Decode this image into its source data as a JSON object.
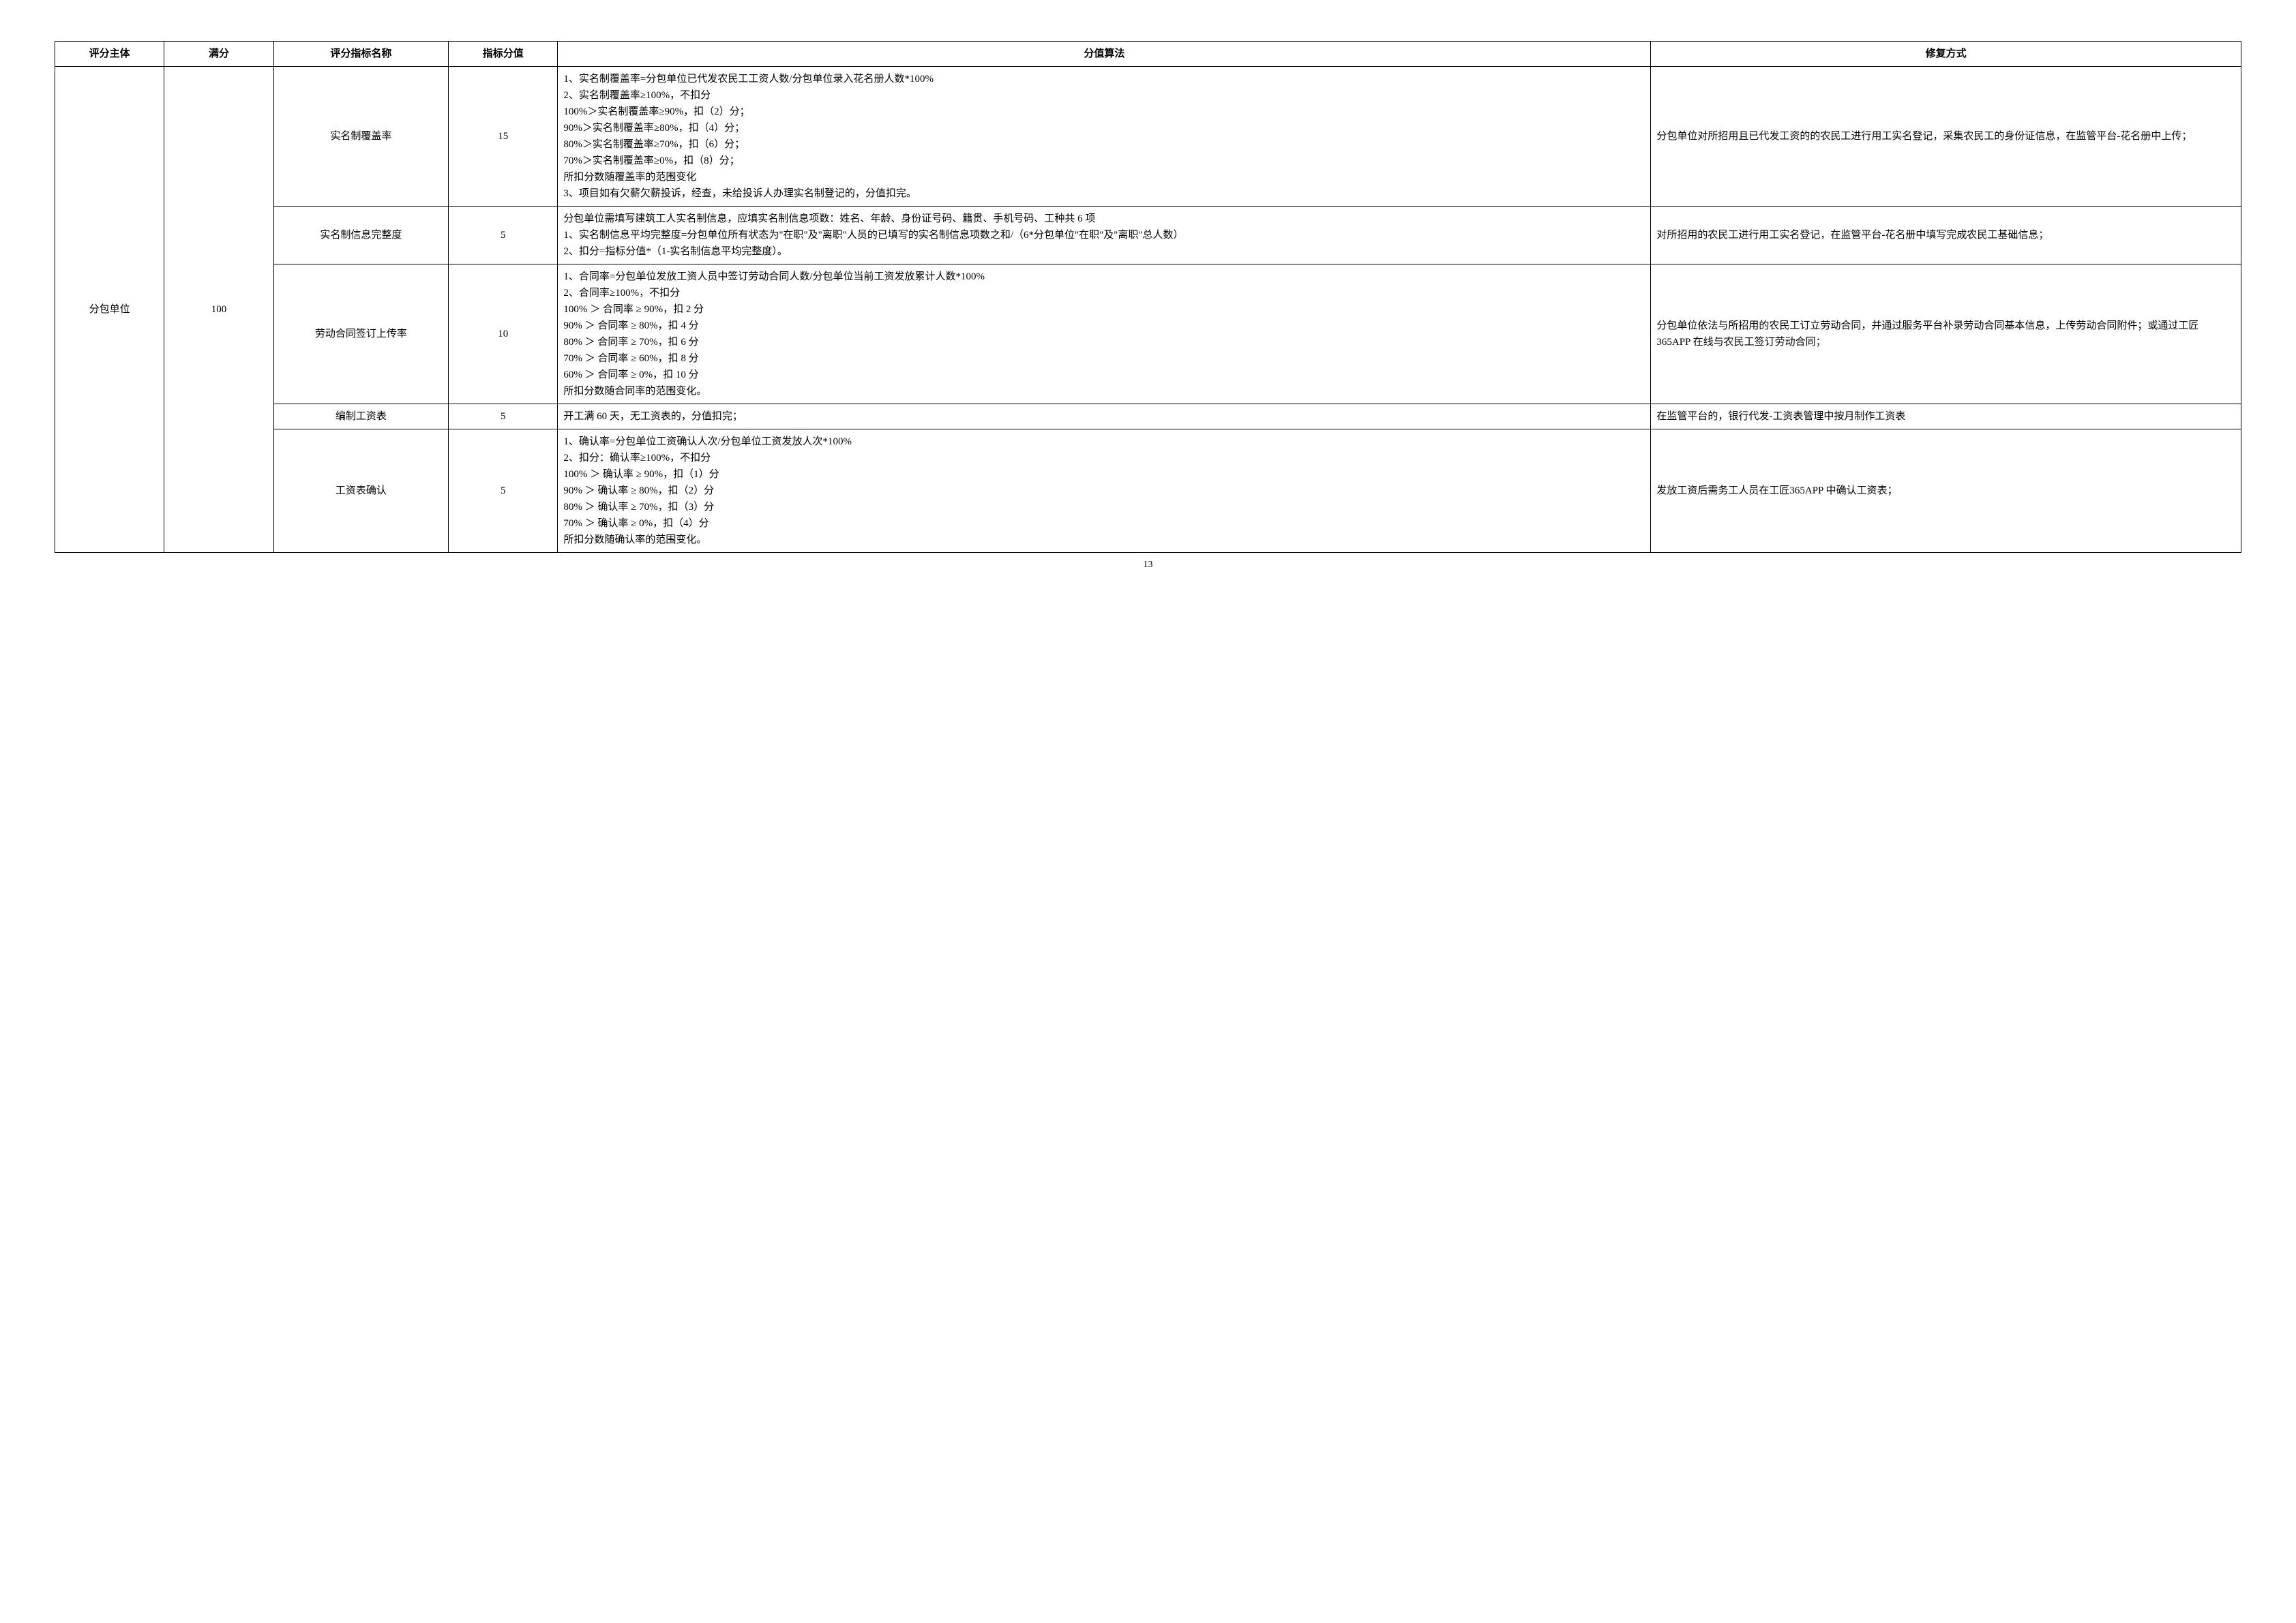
{
  "headers": {
    "subject": "评分主体",
    "fullScore": "满分",
    "indicatorName": "评分指标名称",
    "indicatorScore": "指标分值",
    "algorithm": "分值算法",
    "remedy": "修复方式"
  },
  "subject": {
    "name": "分包单位",
    "fullScore": "100"
  },
  "rows": [
    {
      "name": "实名制覆盖率",
      "score": "15",
      "algorithm": "1、实名制覆盖率=分包单位已代发农民工工资人数/分包单位录入花名册人数*100%\n2、实名制覆盖率≥100%，不扣分\n100%＞实名制覆盖率≥90%，扣（2）分；\n90%＞实名制覆盖率≥80%，扣（4）分；\n80%＞实名制覆盖率≥70%，扣（6）分；\n70%＞实名制覆盖率≥0%，扣（8）分；\n所扣分数随覆盖率的范围变化\n3、项目如有欠薪欠薪投诉，经查，未给投诉人办理实名制登记的，分值扣完。",
      "remedy": "分包单位对所招用且已代发工资的的农民工进行用工实名登记，采集农民工的身份证信息，在监管平台-花名册中上传；"
    },
    {
      "name": "实名制信息完整度",
      "score": "5",
      "algorithm": "分包单位需填写建筑工人实名制信息，应填实名制信息项数：姓名、年龄、身份证号码、籍贯、手机号码、工种共 6 项\n1、实名制信息平均完整度=分包单位所有状态为\"在职\"及\"离职\"人员的已填写的实名制信息项数之和/（6*分包单位\"在职\"及\"离职\"总人数）\n2、扣分=指标分值*（1-实名制信息平均完整度）。",
      "remedy": "对所招用的农民工进行用工实名登记，在监管平台-花名册中填写完成农民工基础信息；"
    },
    {
      "name": "劳动合同签订上传率",
      "score": "10",
      "algorithm": "1、合同率=分包单位发放工资人员中签订劳动合同人数/分包单位当前工资发放累计人数*100%\n2、合同率≥100%，不扣分\n100% ＞ 合同率 ≥ 90%，扣 2 分\n90% ＞ 合同率 ≥ 80%，扣 4 分\n80% ＞ 合同率 ≥ 70%，扣 6 分\n70% ＞ 合同率 ≥ 60%，扣 8 分\n60% ＞ 合同率 ≥ 0%，扣 10 分\n所扣分数随合同率的范围变化。",
      "remedy": "分包单位依法与所招用的农民工订立劳动合同，并通过服务平台补录劳动合同基本信息，上传劳动合同附件；或通过工匠 365APP 在线与农民工签订劳动合同；"
    },
    {
      "name": "编制工资表",
      "score": "5",
      "algorithm": "开工满 60 天，无工资表的，分值扣完；",
      "remedy": "在监管平台的，银行代发-工资表管理中按月制作工资表"
    },
    {
      "name": "工资表确认",
      "score": "5",
      "algorithm": "1、确认率=分包单位工资确认人次/分包单位工资发放人次*100%\n2、扣分：确认率≥100%，不扣分\n100% ＞ 确认率 ≥ 90%，扣（1）分\n90% ＞ 确认率 ≥ 80%，扣（2）分\n80% ＞ 确认率 ≥ 70%，扣（3）分\n70% ＞ 确认率 ≥ 0%，扣（4）分\n所扣分数随确认率的范围变化。",
      "remedy": "发放工资后需务工人员在工匠365APP 中确认工资表；"
    }
  ],
  "pageNumber": "13",
  "styling": {
    "background_color": "#ffffff",
    "border_color": "#000000",
    "font_family": "SimSun",
    "header_fontsize": 15,
    "body_fontsize": 15,
    "line_height": 1.6,
    "col_widths_pct": [
      5,
      5,
      8,
      5,
      50,
      27
    ]
  }
}
